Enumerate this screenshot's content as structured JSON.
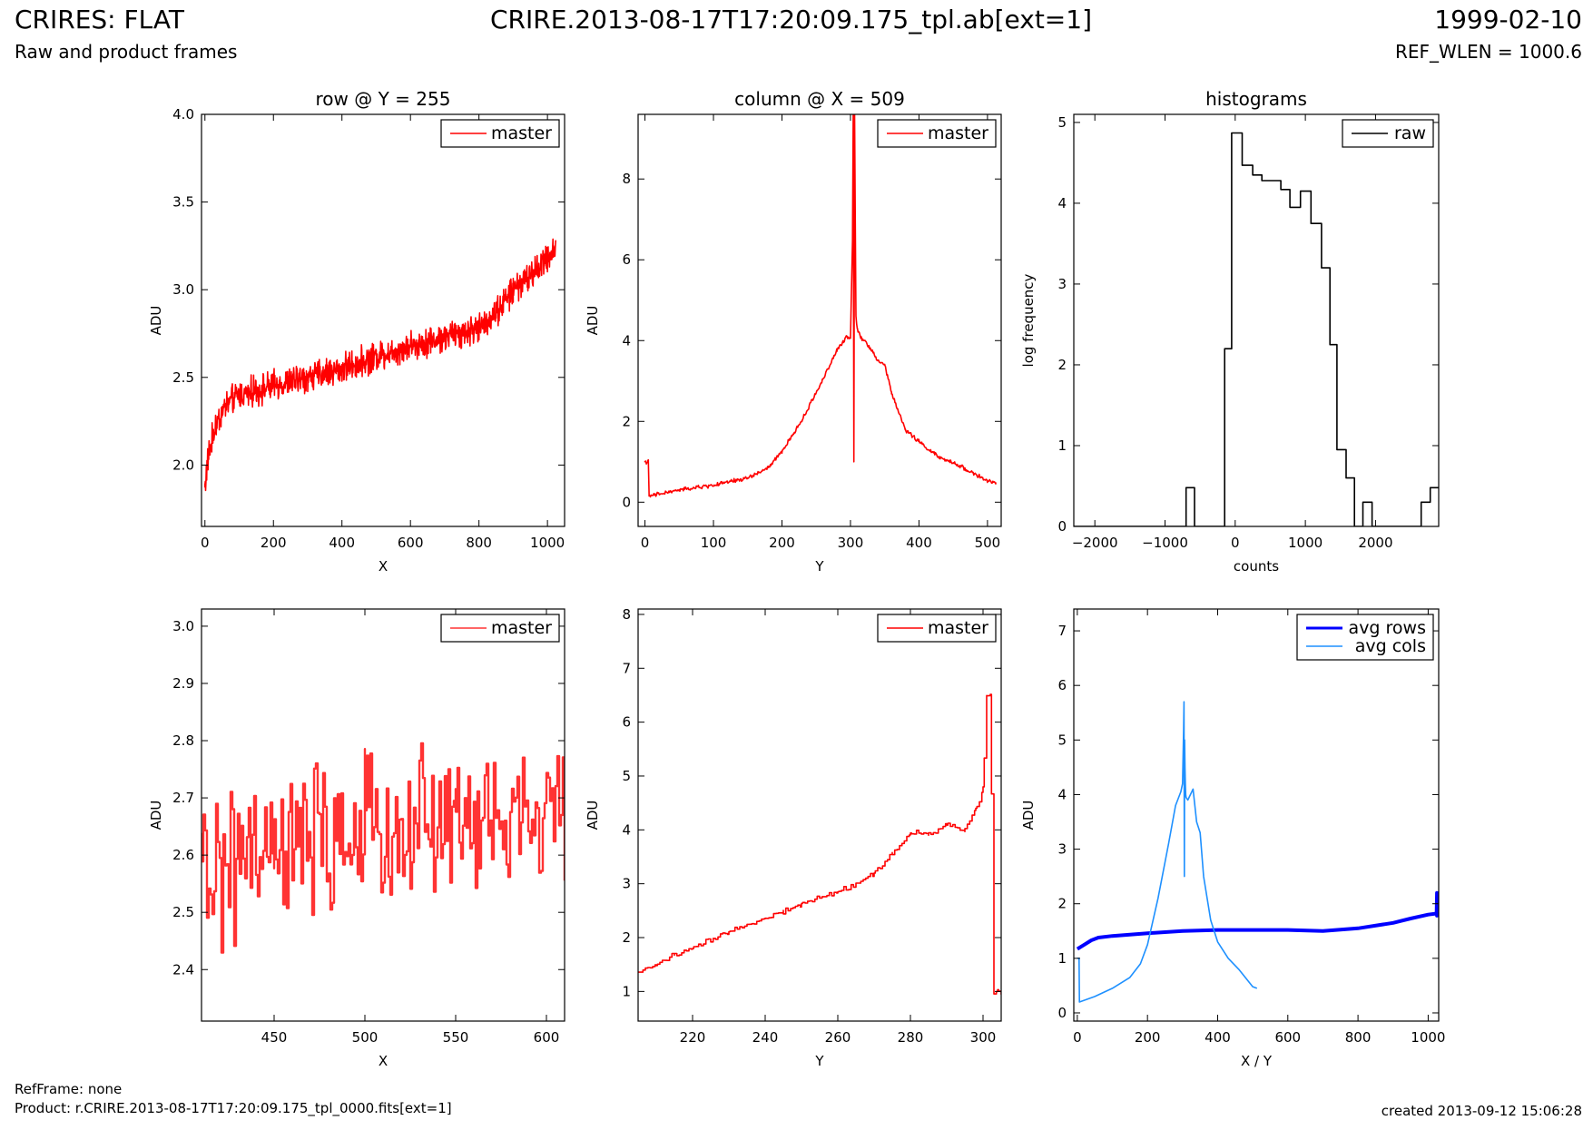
{
  "header": {
    "title": "CRIRES: FLAT",
    "subtitle": "Raw and product frames",
    "center": "CRIRE.2013-08-17T17:20:09.175_tpl.ab[ext=1]",
    "date": "1999-02-10",
    "ref_wlen": "REF_WLEN = 1000.6"
  },
  "footer": {
    "refframe": "RefFrame: none",
    "product": "Product: r.CRIRE.2013-08-17T17:20:09.175_tpl_0000.fits[ext=1]",
    "created": "created 2013-09-12 15:06:28"
  },
  "chart_data": [
    {
      "id": "row",
      "type": "line",
      "title": "row @ Y = 255",
      "xlabel": "X",
      "ylabel": "ADU",
      "xlim": [
        -10,
        1050
      ],
      "ylim": [
        1.65,
        4.0
      ],
      "xticks": [
        0,
        200,
        400,
        600,
        800,
        1000
      ],
      "yticks": [
        2.0,
        2.5,
        3.0,
        3.5,
        4.0
      ],
      "ytick_labels": [
        "2.0",
        "2.5",
        "3.0",
        "3.5",
        "4.0"
      ],
      "legend": "top-right",
      "series": [
        {
          "name": "master",
          "color": "#ff0000",
          "noise": 0.1,
          "x": [
            0,
            10,
            30,
            60,
            100,
            200,
            300,
            400,
            500,
            600,
            700,
            800,
            850,
            900,
            950,
            1000,
            1024
          ],
          "y": [
            1.88,
            2.05,
            2.22,
            2.34,
            2.4,
            2.45,
            2.5,
            2.55,
            2.62,
            2.68,
            2.73,
            2.78,
            2.87,
            3.0,
            3.08,
            3.18,
            3.25
          ]
        }
      ]
    },
    {
      "id": "col",
      "type": "line",
      "title": "column @ X = 509",
      "xlabel": "Y",
      "ylabel": "ADU",
      "xlim": [
        -10,
        520
      ],
      "ylim": [
        -0.6,
        9.6
      ],
      "xticks": [
        0,
        100,
        200,
        300,
        400,
        500
      ],
      "yticks": [
        0,
        2,
        4,
        6,
        8
      ],
      "ytick_labels": [
        "0",
        "2",
        "4",
        "6",
        "8"
      ],
      "legend": "top-right",
      "series": [
        {
          "name": "master",
          "color": "#ff0000",
          "noise": 0.06,
          "x": [
            0,
            4,
            5,
            6,
            50,
            100,
            150,
            180,
            200,
            230,
            260,
            280,
            295,
            300,
            303,
            304,
            305,
            306,
            307,
            308,
            309,
            310,
            315,
            330,
            340,
            350,
            360,
            380,
            400,
            430,
            460,
            500,
            512
          ],
          "y": [
            1.0,
            1.0,
            1.0,
            0.15,
            0.3,
            0.42,
            0.6,
            0.85,
            1.25,
            2.05,
            3.05,
            3.75,
            4.1,
            4.05,
            6.5,
            9.6,
            1.0,
            9.6,
            7.2,
            4.6,
            4.4,
            4.3,
            4.1,
            3.8,
            3.5,
            3.4,
            2.7,
            1.8,
            1.5,
            1.1,
            0.9,
            0.52,
            0.48
          ]
        }
      ]
    },
    {
      "id": "hist",
      "type": "line",
      "title": "histograms",
      "xlabel": "counts",
      "ylabel": "log frequency",
      "xlim": [
        -2300,
        2900
      ],
      "ylim": [
        0,
        5.1
      ],
      "xticks": [
        -2000,
        -1000,
        0,
        1000,
        2000
      ],
      "xtick_labels": [
        "−2000",
        "−1000",
        "0",
        "1000",
        "2000"
      ],
      "yticks": [
        0,
        1,
        2,
        3,
        4,
        5
      ],
      "ytick_labels": [
        "0",
        "1",
        "2",
        "3",
        "4",
        "5"
      ],
      "legend": "top-right",
      "series": [
        {
          "name": "raw",
          "color": "#000000",
          "step": true,
          "x": [
            -2300,
            -700,
            -700,
            -580,
            -580,
            -150,
            -150,
            -50,
            -50,
            100,
            100,
            250,
            250,
            380,
            380,
            650,
            650,
            780,
            780,
            930,
            930,
            1080,
            1080,
            1230,
            1230,
            1350,
            1350,
            1450,
            1450,
            1580,
            1580,
            1700,
            1700,
            1820,
            1820,
            1950,
            1950,
            2650,
            2650,
            2780,
            2780,
            2900
          ],
          "y": [
            0,
            0,
            0.48,
            0.48,
            0,
            0,
            2.2,
            2.2,
            4.87,
            4.87,
            4.47,
            4.47,
            4.35,
            4.35,
            4.28,
            4.28,
            4.17,
            4.17,
            3.95,
            3.95,
            4.15,
            4.15,
            3.75,
            3.75,
            3.2,
            3.2,
            2.25,
            2.25,
            0.95,
            0.95,
            0.6,
            0.6,
            0,
            0,
            0.3,
            0.3,
            0,
            0,
            0.3,
            0.3,
            0.48,
            0.48
          ]
        }
      ]
    },
    {
      "id": "rowzoom",
      "type": "line",
      "xlabel": "X",
      "ylabel": "ADU",
      "xlim": [
        410,
        610
      ],
      "ylim": [
        2.31,
        3.03
      ],
      "xticks": [
        450,
        500,
        550,
        600
      ],
      "yticks": [
        2.4,
        2.5,
        2.6,
        2.7,
        2.8,
        2.9,
        3.0
      ],
      "ytick_labels": [
        "2.4",
        "2.5",
        "2.6",
        "2.7",
        "2.8",
        "2.9",
        "3.0"
      ],
      "legend": "top-right",
      "series": [
        {
          "name": "master",
          "color": "#ff3333",
          "step": true,
          "noise": 0.16,
          "x": [
            410,
            450,
            500,
            550,
            610
          ],
          "y": [
            2.57,
            2.6,
            2.64,
            2.66,
            2.67
          ]
        }
      ]
    },
    {
      "id": "colzoom",
      "type": "line",
      "xlabel": "Y",
      "ylabel": "ADU",
      "xlim": [
        205,
        305
      ],
      "ylim": [
        0.45,
        8.1
      ],
      "xticks": [
        220,
        240,
        260,
        280,
        300
      ],
      "yticks": [
        1,
        2,
        3,
        4,
        5,
        6,
        7,
        8
      ],
      "ytick_labels": [
        "1",
        "2",
        "3",
        "4",
        "5",
        "6",
        "7",
        "8"
      ],
      "legend": "top-right",
      "series": [
        {
          "name": "master",
          "color": "#ff0000",
          "step": true,
          "noise": 0.06,
          "x": [
            205,
            210,
            215,
            220,
            225,
            230,
            235,
            240,
            245,
            250,
            255,
            260,
            265,
            270,
            275,
            280,
            285,
            290,
            295,
            298,
            300,
            301,
            302,
            303,
            304,
            305
          ],
          "y": [
            1.35,
            1.5,
            1.68,
            1.8,
            1.95,
            2.1,
            2.22,
            2.38,
            2.48,
            2.62,
            2.75,
            2.85,
            3.0,
            3.2,
            3.55,
            3.95,
            3.92,
            4.1,
            3.98,
            4.4,
            4.75,
            6.5,
            6.5,
            1.0,
            1.0,
            1.0
          ]
        }
      ]
    },
    {
      "id": "avg",
      "type": "line",
      "xlabel": "X / Y",
      "ylabel": "ADU",
      "xlim": [
        -10,
        1030
      ],
      "ylim": [
        -0.15,
        7.4
      ],
      "xticks": [
        0,
        200,
        400,
        600,
        800,
        1000
      ],
      "yticks": [
        0,
        1,
        2,
        3,
        4,
        5,
        6,
        7
      ],
      "ytick_labels": [
        "0",
        "1",
        "2",
        "3",
        "4",
        "5",
        "6",
        "7"
      ],
      "legend": "top-right",
      "series": [
        {
          "name": "avg rows",
          "color": "#0000ff",
          "width": 4,
          "x": [
            0,
            20,
            40,
            60,
            100,
            200,
            300,
            400,
            500,
            600,
            700,
            800,
            900,
            950,
            1000,
            1024,
            1025,
            1025,
            1026
          ],
          "y": [
            1.17,
            1.25,
            1.33,
            1.38,
            1.41,
            1.46,
            1.5,
            1.52,
            1.52,
            1.52,
            1.5,
            1.55,
            1.65,
            1.73,
            1.8,
            1.82,
            2.2,
            1.78,
            1.82
          ]
        },
        {
          "name": "avg cols",
          "color": "#1e90ff",
          "width": 1.6,
          "x": [
            0,
            4,
            5,
            6,
            50,
            100,
            150,
            180,
            200,
            230,
            260,
            280,
            295,
            300,
            303,
            304,
            305,
            306,
            307,
            308,
            309,
            310,
            315,
            330,
            340,
            350,
            360,
            380,
            400,
            430,
            460,
            500,
            512
          ],
          "y": [
            1.0,
            1.0,
            1.0,
            0.2,
            0.3,
            0.45,
            0.65,
            0.9,
            1.25,
            2.1,
            3.1,
            3.8,
            4.05,
            4.2,
            5.2,
            5.7,
            2.5,
            5.0,
            4.5,
            4.2,
            4.0,
            3.95,
            3.9,
            4.1,
            3.5,
            3.3,
            2.5,
            1.7,
            1.3,
            1.0,
            0.8,
            0.48,
            0.45
          ]
        }
      ]
    }
  ]
}
